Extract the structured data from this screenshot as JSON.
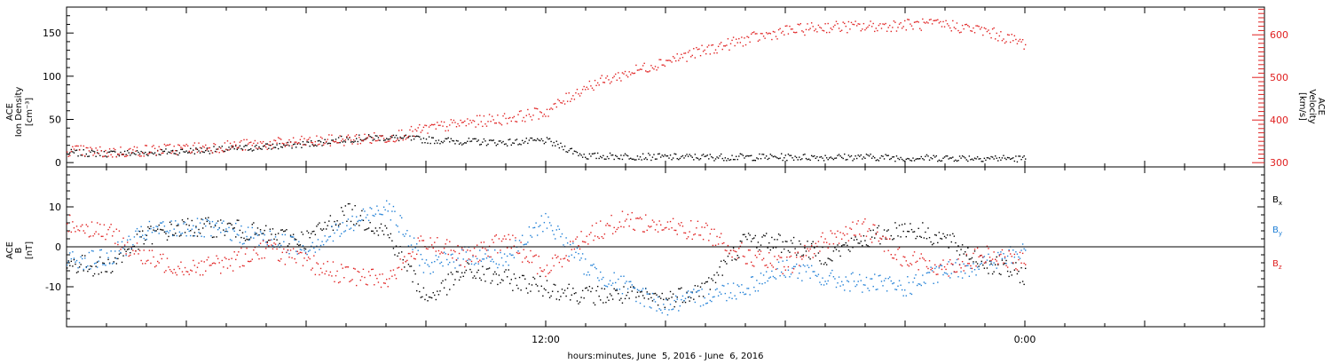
{
  "colors": {
    "black": "#000000",
    "red": "#e02020",
    "blue": "#1f7fd6"
  },
  "chart_data": [
    {
      "type": "scatter",
      "title": "",
      "ylabel_left": [
        "ACE",
        "Ion Density",
        "[cm⁻³]"
      ],
      "ylabel_right": [
        "ACE",
        "Velocity",
        "[km/s]"
      ],
      "ylim_left": [
        -5,
        180
      ],
      "yticks_left": [
        0,
        50,
        100,
        150
      ],
      "ylim_right": [
        290,
        665
      ],
      "yticks_right": [
        300,
        400,
        500,
        600
      ],
      "x_range_hours": [
        "June 5, 2016 00:00",
        "June 6, 2016 06:00"
      ],
      "grid": false,
      "series": [
        {
          "axis": "left",
          "color": "black",
          "hours": [
            0,
            1,
            2,
            3,
            4,
            5,
            6,
            7,
            8,
            9,
            10,
            11,
            12,
            13,
            14,
            15,
            16,
            17,
            18,
            19,
            20,
            21,
            22,
            23,
            24
          ],
          "values": [
            12,
            11,
            12,
            14,
            16,
            19,
            22,
            28,
            30,
            27,
            25,
            24,
            26,
            8,
            8,
            7,
            7,
            7,
            7,
            7,
            7,
            6,
            6,
            6,
            5
          ]
        },
        {
          "axis": "right",
          "color": "red",
          "hours": [
            0,
            1,
            2,
            3,
            4,
            5,
            6,
            7,
            8,
            9,
            10,
            11,
            12,
            13,
            14,
            15,
            16,
            17,
            18,
            19,
            20,
            21,
            22,
            23,
            24
          ],
          "values": [
            330,
            325,
            330,
            335,
            340,
            345,
            350,
            355,
            360,
            380,
            395,
            405,
            420,
            480,
            510,
            540,
            565,
            590,
            610,
            620,
            620,
            625,
            625,
            610,
            580
          ]
        }
      ]
    },
    {
      "type": "scatter",
      "title": "",
      "ylabel_left": [
        "ACE",
        "B",
        "[nT]"
      ],
      "ylim": [
        -20,
        20
      ],
      "yticks": [
        -10,
        0,
        10
      ],
      "zero_line": true,
      "legend_placement": "right",
      "series": [
        {
          "name": "Bx",
          "color": "black",
          "hours": [
            0,
            1,
            2,
            3,
            4,
            5,
            6,
            7,
            8,
            9,
            10,
            11,
            12,
            13,
            14,
            15,
            16,
            17,
            18,
            19,
            20,
            21,
            22,
            23,
            24
          ],
          "values": [
            -4,
            -5,
            3,
            5,
            5,
            3,
            2,
            9,
            4,
            -13,
            -6,
            -8,
            -10,
            -12,
            -12,
            -13,
            -10,
            2,
            1,
            -2,
            2,
            5,
            2,
            -4,
            -7
          ]
        },
        {
          "name": "By",
          "color": "blue",
          "hours": [
            0,
            1,
            2,
            3,
            4,
            5,
            6,
            7,
            8,
            9,
            10,
            11,
            12,
            13,
            14,
            15,
            16,
            17,
            18,
            19,
            20,
            21,
            22,
            23,
            24
          ],
          "values": [
            -3,
            -3,
            4,
            5,
            4,
            2,
            0,
            5,
            11,
            -5,
            -2,
            -3,
            7,
            -5,
            -10,
            -15,
            -12,
            -10,
            -5,
            -8,
            -9,
            -10,
            -6,
            -4,
            -1
          ]
        },
        {
          "name": "Bz",
          "color": "red",
          "hours": [
            0,
            1,
            2,
            3,
            4,
            5,
            6,
            7,
            8,
            9,
            10,
            11,
            12,
            13,
            14,
            15,
            16,
            17,
            18,
            19,
            20,
            21,
            22,
            23,
            24
          ],
          "values": [
            6,
            4,
            -3,
            -5,
            -4,
            0,
            -4,
            -7,
            -8,
            2,
            -3,
            2,
            -6,
            3,
            7,
            5,
            4,
            -2,
            -5,
            2,
            5,
            -3,
            -5,
            -2,
            -4
          ]
        }
      ]
    }
  ],
  "axis": {
    "xtick_labels": [
      "12:00",
      "0:00"
    ],
    "xtick_hours": [
      12,
      24
    ],
    "xlabel": "hours:minutes, June  5, 2016 - June  6, 2016"
  },
  "legend": {
    "bx": "B",
    "bx_sub": "x",
    "by": "B",
    "by_sub": "y",
    "bz": "B",
    "bz_sub": "z"
  }
}
